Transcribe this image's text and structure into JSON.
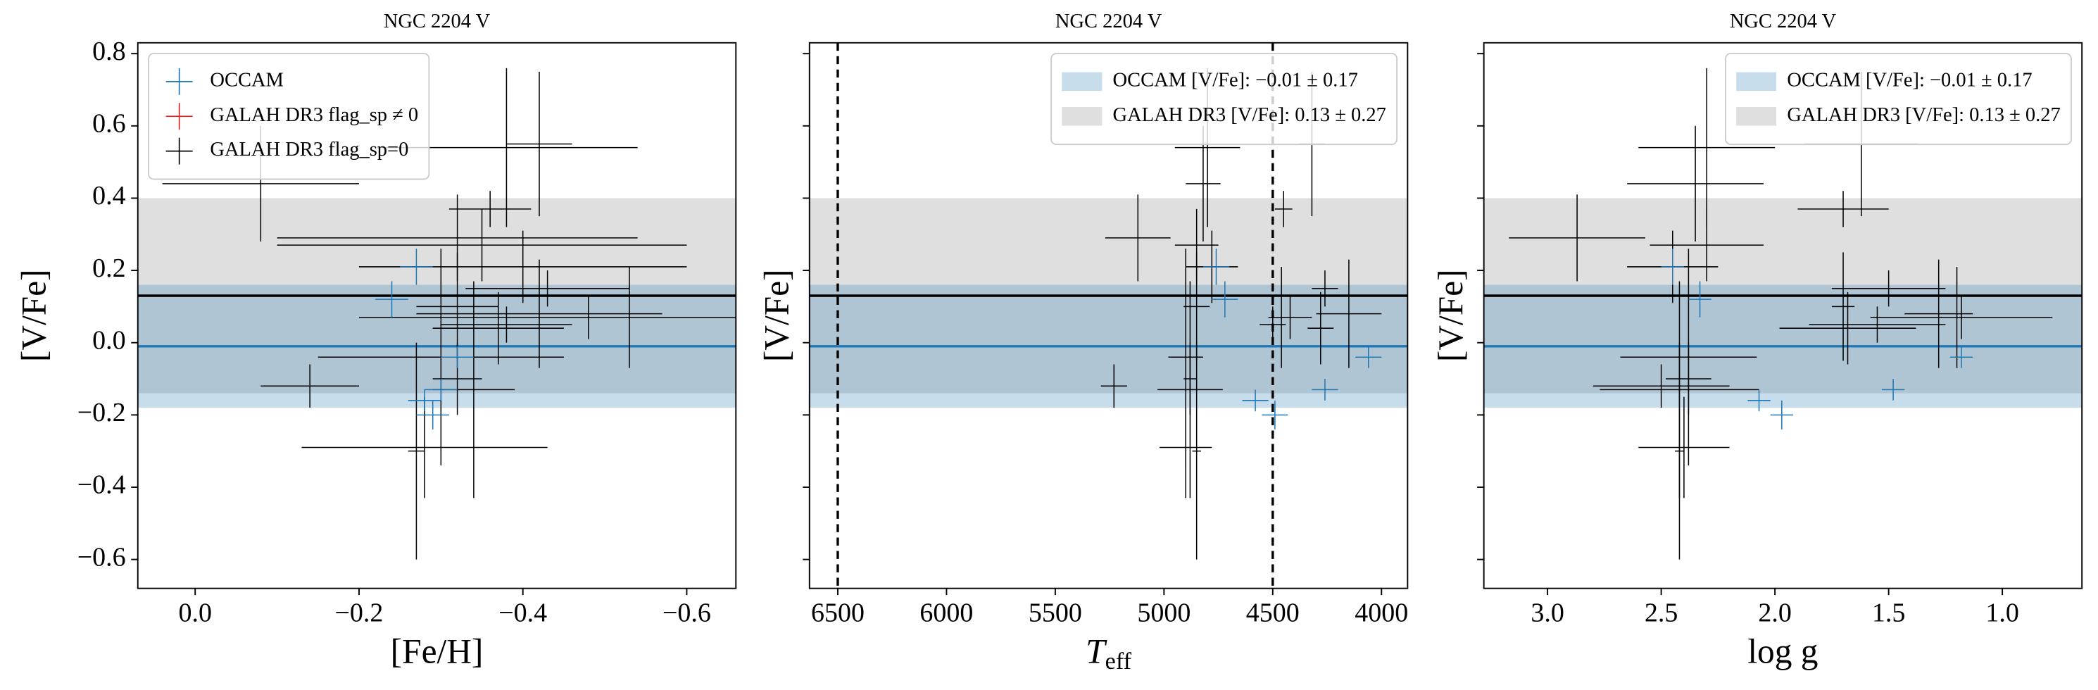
{
  "chart_data": [
    {
      "type": "errorbar",
      "title": "NGC 2204 V",
      "xlabel": "[Fe/H]",
      "ylabel": "[V/Fe]",
      "xlim": [
        0.07,
        -0.66
      ],
      "ylim": [
        -0.68,
        0.83
      ],
      "xticks": [
        {
          "value": 0,
          "label": "0.0"
        },
        {
          "value": -0.2,
          "label": "−0.2"
        },
        {
          "value": -0.4,
          "label": "−0.4"
        },
        {
          "value": -0.6,
          "label": "−0.6"
        }
      ],
      "yticks": [
        {
          "value": -0.6,
          "label": "−0.6"
        },
        {
          "value": -0.4,
          "label": "−0.4"
        },
        {
          "value": -0.2,
          "label": "−0.2"
        },
        {
          "value": 0,
          "label": "0.0"
        },
        0.2,
        0.4,
        0.6,
        0.8
      ],
      "legend": "upper left",
      "bands": [
        {
          "center": -0.01,
          "error": 0.17,
          "color": "#1f77b4",
          "alpha": 0.25,
          "line_color": "#1f77b4"
        },
        {
          "center": 0.13,
          "error": 0.27,
          "color": "#808080",
          "alpha": 0.25,
          "line_color": "#000000"
        }
      ],
      "series": [
        {
          "name": "OCCAM",
          "color": "#1f77b4",
          "x": [
            -0.27,
            -0.24,
            -0.32,
            -0.3,
            -0.28,
            -0.29
          ],
          "xerr": [
            0.02,
            0.02,
            0.02,
            0.02,
            0.02,
            0.02
          ],
          "values": [
            0.21,
            0.12,
            -0.04,
            -0.13,
            -0.16,
            -0.2
          ],
          "yerr": [
            0.05,
            0.05,
            0.03,
            0.03,
            0.03,
            0.04
          ]
        },
        {
          "name": "GALAH DR3 flag_sp ≠ 0",
          "color": "#d62728",
          "x": [],
          "xerr": [],
          "values": [],
          "yerr": []
        },
        {
          "name": "GALAH DR3 flag_sp=0",
          "color": "#000000",
          "x": [
            -0.08,
            -0.42,
            -0.38,
            -0.36,
            -0.32,
            -0.35,
            -0.4,
            -0.43,
            -0.32,
            -0.42,
            -0.48,
            -0.38,
            -0.37,
            -0.53,
            -0.3,
            -0.14,
            -0.34,
            -0.28,
            -0.27,
            -0.32
          ],
          "xerr": [
            0.12,
            0.04,
            0.16,
            0.05,
            0.22,
            0.25,
            0.2,
            0.1,
            0.05,
            0.15,
            0.28,
            0.08,
            0.08,
            0.01,
            0.15,
            0.06,
            0.05,
            0.15,
            0.01,
            0.03
          ],
          "values": [
            0.44,
            0.55,
            0.54,
            0.37,
            0.29,
            0.27,
            0.21,
            0.15,
            0.1,
            0.08,
            0.07,
            0.05,
            0.04,
            0.07,
            -0.04,
            -0.12,
            -0.13,
            -0.29,
            -0.3,
            -0.1
          ],
          "yerr": [
            0.16,
            0.2,
            0.22,
            0.05,
            0.12,
            0.1,
            0.1,
            0.05,
            0.15,
            0.15,
            0.06,
            0.05,
            0.1,
            0.14,
            0.3,
            0.06,
            0.3,
            0.14,
            0.3,
            0.1
          ]
        }
      ]
    },
    {
      "type": "errorbar",
      "title": "NGC 2204 V",
      "xlabel": "T",
      "xlabel_sub": "eff",
      "ylabel": "[V/Fe]",
      "xlim": [
        6630,
        3880
      ],
      "ylim": [
        -0.68,
        0.83
      ],
      "xticks": [
        6500,
        6000,
        5500,
        5000,
        4500,
        4000
      ],
      "yticks": [
        -0.6,
        -0.4,
        -0.2,
        0,
        0.2,
        0.4,
        0.6,
        0.8
      ],
      "vlines": [
        6500,
        4500
      ],
      "legend": "upper right",
      "bands": [
        {
          "label": "OCCAM [V/Fe]: −0.01 ± 0.17",
          "center": -0.01,
          "error": 0.17,
          "color": "#1f77b4",
          "alpha": 0.25,
          "line_color": "#1f77b4"
        },
        {
          "label": "GALAH DR3 [V/Fe]: 0.13 ± 0.27",
          "center": 0.13,
          "error": 0.27,
          "color": "#808080",
          "alpha": 0.25,
          "line_color": "#000000"
        }
      ],
      "series": [
        {
          "color": "#1f77b4",
          "x": [
            4760,
            4720,
            4060,
            4260,
            4580,
            4490
          ],
          "xerr": [
            60,
            60,
            60,
            60,
            60,
            60
          ],
          "values": [
            0.21,
            0.12,
            -0.04,
            -0.13,
            -0.16,
            -0.2
          ],
          "yerr": [
            0.05,
            0.05,
            0.03,
            0.03,
            0.03,
            0.04
          ]
        },
        {
          "color": "#000000",
          "x": [
            4820,
            4320,
            4800,
            4450,
            5120,
            4850,
            4780,
            4260,
            4850,
            4150,
            4420,
            4500,
            4280,
            4460,
            4900,
            5230,
            4880,
            4900,
            4850,
            4880
          ],
          "xerr": [
            80,
            60,
            150,
            40,
            150,
            100,
            120,
            60,
            60,
            150,
            100,
            60,
            60,
            20,
            80,
            60,
            150,
            120,
            20,
            30
          ],
          "values": [
            0.44,
            0.55,
            0.54,
            0.37,
            0.29,
            0.27,
            0.21,
            0.15,
            0.1,
            0.08,
            0.07,
            0.05,
            0.04,
            0.07,
            -0.04,
            -0.12,
            -0.13,
            -0.29,
            -0.3,
            -0.1
          ],
          "yerr": [
            0.16,
            0.2,
            0.22,
            0.05,
            0.12,
            0.1,
            0.1,
            0.05,
            0.15,
            0.15,
            0.06,
            0.05,
            0.1,
            0.14,
            0.3,
            0.06,
            0.3,
            0.14,
            0.3,
            0.1
          ]
        }
      ]
    },
    {
      "type": "errorbar",
      "title": "NGC 2204 V",
      "xlabel": "log g",
      "ylabel": "[V/Fe]",
      "xlim": [
        3.28,
        0.65
      ],
      "ylim": [
        -0.68,
        0.83
      ],
      "xticks": [
        {
          "value": 3,
          "label": "3.0"
        },
        2.5,
        {
          "value": 2,
          "label": "2.0"
        },
        1.5,
        {
          "value": 1,
          "label": "1.0"
        }
      ],
      "yticks": [
        -0.6,
        -0.4,
        -0.2,
        0,
        0.2,
        0.4,
        0.6,
        0.8
      ],
      "legend": "upper right",
      "bands": [
        {
          "label": "OCCAM [V/Fe]: −0.01 ± 0.17",
          "center": -0.01,
          "error": 0.17,
          "color": "#1f77b4",
          "alpha": 0.25,
          "line_color": "#1f77b4"
        },
        {
          "label": "GALAH DR3 [V/Fe]: 0.13 ± 0.27",
          "center": 0.13,
          "error": 0.27,
          "color": "#808080",
          "alpha": 0.25,
          "line_color": "#000000"
        }
      ],
      "series": [
        {
          "color": "#1f77b4",
          "x": [
            2.45,
            2.33,
            1.18,
            1.48,
            2.07,
            1.97
          ],
          "xerr": [
            0.05,
            0.05,
            0.05,
            0.05,
            0.05,
            0.05
          ],
          "values": [
            0.21,
            0.12,
            -0.04,
            -0.13,
            -0.16,
            -0.2
          ],
          "yerr": [
            0.05,
            0.05,
            0.03,
            0.03,
            0.03,
            0.04
          ]
        },
        {
          "color": "#000000",
          "x": [
            2.35,
            1.62,
            2.3,
            1.7,
            2.87,
            2.3,
            2.45,
            1.5,
            1.7,
            1.28,
            1.18,
            1.55,
            1.68,
            1.2,
            2.38,
            2.5,
            2.42,
            2.4,
            2.42,
            2.38
          ],
          "xerr": [
            0.3,
            0.25,
            0.3,
            0.2,
            0.3,
            0.25,
            0.2,
            0.25,
            0.05,
            0.15,
            0.4,
            0.3,
            0.3,
            0.05,
            0.3,
            0.3,
            0.35,
            0.2,
            0.02,
            0.1
          ],
          "values": [
            0.44,
            0.55,
            0.54,
            0.37,
            0.29,
            0.27,
            0.21,
            0.15,
            0.1,
            0.08,
            0.07,
            0.05,
            0.04,
            0.07,
            -0.04,
            -0.12,
            -0.13,
            -0.29,
            -0.3,
            -0.1
          ],
          "yerr": [
            0.16,
            0.2,
            0.22,
            0.05,
            0.12,
            0.1,
            0.1,
            0.05,
            0.15,
            0.15,
            0.06,
            0.05,
            0.1,
            0.14,
            0.3,
            0.06,
            0.3,
            0.14,
            0.3,
            0.1
          ]
        }
      ]
    }
  ]
}
